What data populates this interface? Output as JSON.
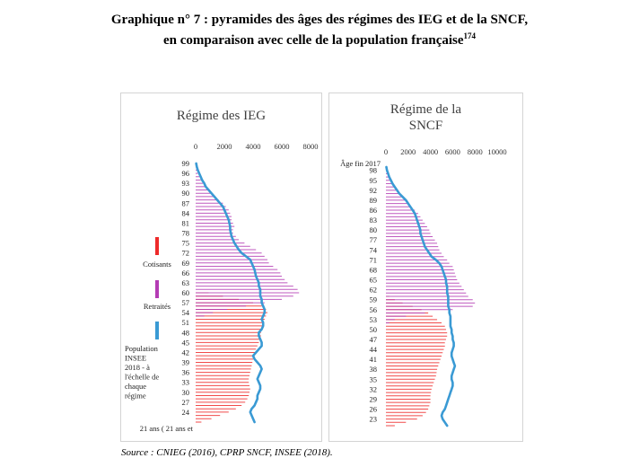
{
  "title": {
    "line1": "Graphique n° 7 : pyramides des âges des régimes des IEG et de la SNCF,",
    "line2": "en comparaison avec celle de la population française",
    "footnote": "174"
  },
  "source": "Source : CNIEG (2016), CPRP SNCF, INSEE (2018).",
  "colors": {
    "cotisants": "#ee2a2a",
    "retraites": "#b43cb4",
    "population": "#3a9ad4"
  },
  "legend": {
    "cotisants": "Cotisants",
    "retraites": "Retraités",
    "population": [
      "Population",
      "INSEE",
      "2018 - à",
      "l'échelle de",
      "chaque",
      "régime"
    ]
  },
  "chart_data": [
    {
      "type": "bar",
      "orientation": "horizontal",
      "title": "Régime des IEG",
      "x_ticks": [
        "0",
        "2000",
        "4000",
        "6000",
        "8000"
      ],
      "xlim": [
        0,
        8000
      ],
      "age_labels": [
        "99",
        "96",
        "93",
        "90",
        "87",
        "84",
        "81",
        "78",
        "75",
        "72",
        "69",
        "66",
        "63",
        "60",
        "57",
        "54",
        "51",
        "48",
        "45",
        "42",
        "39",
        "36",
        "33",
        "30",
        "27",
        "24"
      ],
      "bottom_label": "21 ans ( 21 ans et",
      "age_range": [
        21,
        99
      ],
      "series": [
        {
          "name": "Cotisants",
          "age_range": [
            21,
            60
          ],
          "values": [
            400,
            1100,
            1700,
            2300,
            2800,
            3200,
            3450,
            3600,
            3700,
            3750,
            3800,
            3750,
            3700,
            3700,
            3750,
            3800,
            3850,
            3900,
            3950,
            4000,
            4100,
            4150,
            4200,
            4300,
            4400,
            4500,
            4550,
            4550,
            4600,
            4650,
            4700,
            4800,
            4900,
            5000,
            4900,
            4600,
            4000,
            3000,
            1900,
            900
          ]
        },
        {
          "name": "Retraités",
          "age_range": [
            53,
            99
          ],
          "values": [
            600,
            1200,
            2200,
            3500,
            4800,
            6000,
            6800,
            7200,
            7100,
            6800,
            6400,
            6200,
            6000,
            5900,
            5700,
            5400,
            5100,
            5000,
            4800,
            4600,
            4200,
            3800,
            3400,
            3000,
            2800,
            2600,
            2600,
            2700,
            2600,
            2500,
            2500,
            2400,
            2300,
            2100,
            1900,
            1600,
            1350,
            1100,
            900,
            700,
            500,
            350,
            250,
            150,
            90,
            50,
            20
          ]
        },
        {
          "name": "Population INSEE 2018 - à l'échelle de chaque régime",
          "age_range": [
            21,
            99
          ],
          "values": [
            4100,
            4000,
            3900,
            3800,
            3900,
            4100,
            4200,
            4300,
            4300,
            4400,
            4500,
            4500,
            4400,
            4300,
            4400,
            4500,
            4600,
            4500,
            4300,
            4100,
            4000,
            4200,
            4400,
            4600,
            4600,
            4500,
            4400,
            4400,
            4600,
            4700,
            4700,
            4600,
            4700,
            4800,
            4800,
            4700,
            4600,
            4600,
            4500,
            4500,
            4500,
            4400,
            4400,
            4300,
            4200,
            4150,
            4100,
            4000,
            3900,
            3800,
            3500,
            3200,
            3000,
            2850,
            2700,
            2600,
            2500,
            2450,
            2400,
            2400,
            2350,
            2300,
            2200,
            2100,
            2000,
            1900,
            1700,
            1500,
            1300,
            1100,
            900,
            700,
            600,
            450,
            350,
            250,
            150,
            80,
            40
          ]
        }
      ]
    },
    {
      "type": "bar",
      "orientation": "horizontal",
      "title": "Régime de la SNCF",
      "title_lines": [
        "Régime de la",
        "SNCF"
      ],
      "x_ticks": [
        "0",
        "2000",
        "4000",
        "6000",
        "8000",
        "10000"
      ],
      "xlim": [
        0,
        10000
      ],
      "age_labels": [
        "98",
        "95",
        "92",
        "89",
        "86",
        "83",
        "80",
        "77",
        "74",
        "71",
        "68",
        "65",
        "62",
        "59",
        "56",
        "53",
        "50",
        "47",
        "44",
        "41",
        "38",
        "35",
        "32",
        "29",
        "26",
        "23"
      ],
      "top_label": "Âge fin 2017",
      "age_range": [
        21,
        99
      ],
      "series": [
        {
          "name": "Cotisants",
          "age_range": [
            21,
            60
          ],
          "values": [
            800,
            1800,
            2800,
            3300,
            3600,
            3800,
            3900,
            4000,
            4000,
            4000,
            4050,
            4100,
            4200,
            4300,
            4400,
            4500,
            4550,
            4600,
            4700,
            4800,
            4900,
            5000,
            5100,
            5200,
            5300,
            5300,
            5400,
            5500,
            5500,
            5400,
            5300,
            5000,
            4600,
            4200,
            3800,
            3200,
            2400,
            1500,
            800,
            300
          ]
        },
        {
          "name": "Retraités",
          "age_range": [
            52,
            99
          ],
          "values": [
            300,
            800,
            1800,
            3500,
            6000,
            7800,
            8000,
            7800,
            7400,
            7200,
            7000,
            6800,
            6600,
            6400,
            6300,
            6200,
            6100,
            6000,
            5700,
            5500,
            5200,
            5000,
            4800,
            4700,
            4600,
            4400,
            4200,
            4000,
            3900,
            3700,
            3500,
            3300,
            3100,
            2900,
            2600,
            2300,
            2000,
            1700,
            1400,
            1100,
            900,
            700,
            500,
            350,
            250,
            150,
            80,
            40
          ]
        },
        {
          "name": "Population INSEE 2018 - à l'échelle de chaque régime",
          "age_range": [
            21,
            99
          ],
          "values": [
            5500,
            5300,
            5100,
            5000,
            5100,
            5300,
            5400,
            5500,
            5600,
            5700,
            5800,
            5900,
            6000,
            6000,
            5900,
            5900,
            6000,
            6100,
            6200,
            6100,
            6000,
            5900,
            5900,
            6000,
            6100,
            6100,
            6000,
            6000,
            5900,
            5900,
            5800,
            5800,
            5800,
            5800,
            5700,
            5700,
            5600,
            5600,
            5600,
            5600,
            5500,
            5500,
            5500,
            5400,
            5400,
            5300,
            5200,
            5100,
            5000,
            4800,
            4500,
            4100,
            3900,
            3700,
            3500,
            3400,
            3300,
            3200,
            3100,
            3100,
            3000,
            2900,
            2800,
            2700,
            2600,
            2400,
            2200,
            2000,
            1800,
            1500,
            1200,
            1000,
            800,
            600,
            450,
            300,
            200,
            100,
            40
          ]
        }
      ]
    }
  ]
}
